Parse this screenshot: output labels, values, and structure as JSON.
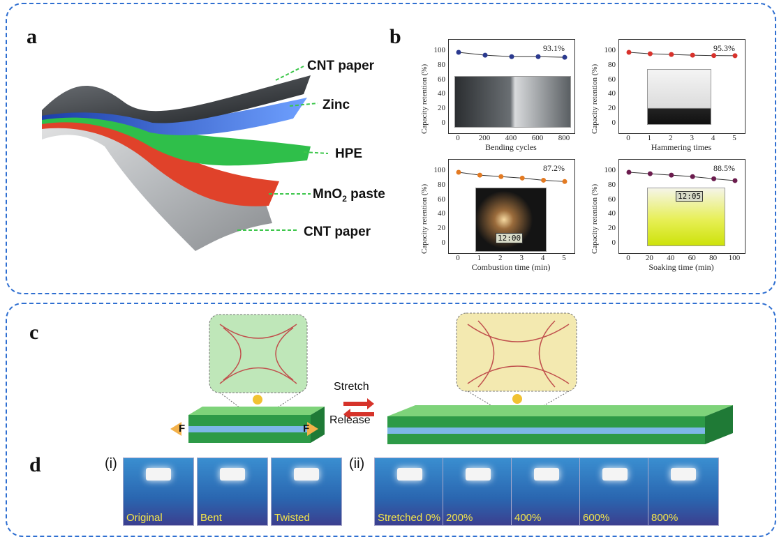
{
  "panels": {
    "a": "a",
    "b": "b",
    "c": "c",
    "d": "d"
  },
  "layers": [
    "CNT paper",
    "Zinc",
    "HPE",
    "MnO",
    "CNT paper"
  ],
  "mno2_sub": "2",
  "mno2_suffix": " paste",
  "charts": [
    {
      "ylabel": "Capacity retention (%)",
      "xlabel": "Bending cycles",
      "xticks": [
        "0",
        "200",
        "400",
        "600",
        "800"
      ],
      "yticks": [
        "100",
        "80",
        "60",
        "40",
        "20",
        "0"
      ],
      "pct": "93.1%",
      "color": "#2b3a8f",
      "values": [
        100,
        96,
        94,
        94,
        93.1
      ]
    },
    {
      "ylabel": "Capacity retention (%)",
      "xlabel": "Hammering times",
      "xticks": [
        "0",
        "1",
        "2",
        "3",
        "4",
        "5"
      ],
      "yticks": [
        "100",
        "80",
        "60",
        "40",
        "20",
        "0"
      ],
      "pct": "95.3%",
      "color": "#d8322c",
      "values": [
        100,
        98,
        97,
        96,
        95.5,
        95.3
      ]
    },
    {
      "ylabel": "Capacity retention (%)",
      "xlabel": "Combustion  time (min)",
      "xticks": [
        "0",
        "1",
        "2",
        "3",
        "4",
        "5"
      ],
      "yticks": [
        "100",
        "80",
        "60",
        "40",
        "20",
        "0"
      ],
      "pct": "87.2%",
      "color": "#e37a22",
      "values": [
        100,
        96,
        94,
        92,
        89,
        87.2
      ]
    },
    {
      "ylabel": "Capacity retention (%)",
      "xlabel": "Soaking time (min)",
      "xticks": [
        "0",
        "20",
        "40",
        "60",
        "80",
        "100"
      ],
      "yticks": [
        "100",
        "80",
        "60",
        "40",
        "20",
        "0"
      ],
      "pct": "88.5%",
      "color": "#6b1c4e",
      "values": [
        100,
        98,
        96,
        94,
        91,
        88.5
      ]
    }
  ],
  "photo_text": {
    "clock1": "12:05",
    "clock2": "12:00"
  },
  "stretch": {
    "stretch": "Stretch",
    "release": "Release",
    "force": "F"
  },
  "d_roman": {
    "i": "(i)",
    "ii": "(ii)"
  },
  "d_labels_i": [
    "Original",
    "Bent",
    "Twisted"
  ],
  "d_labels_ii": [
    "Stretched 0%",
    "200%",
    "400%",
    "600%",
    "800%"
  ],
  "colors": {
    "border": "#2f6fd1",
    "green": "#2fbf4a",
    "blue": "#3d6fd8",
    "red": "#e0422a",
    "device_green": "#2d9a47"
  }
}
